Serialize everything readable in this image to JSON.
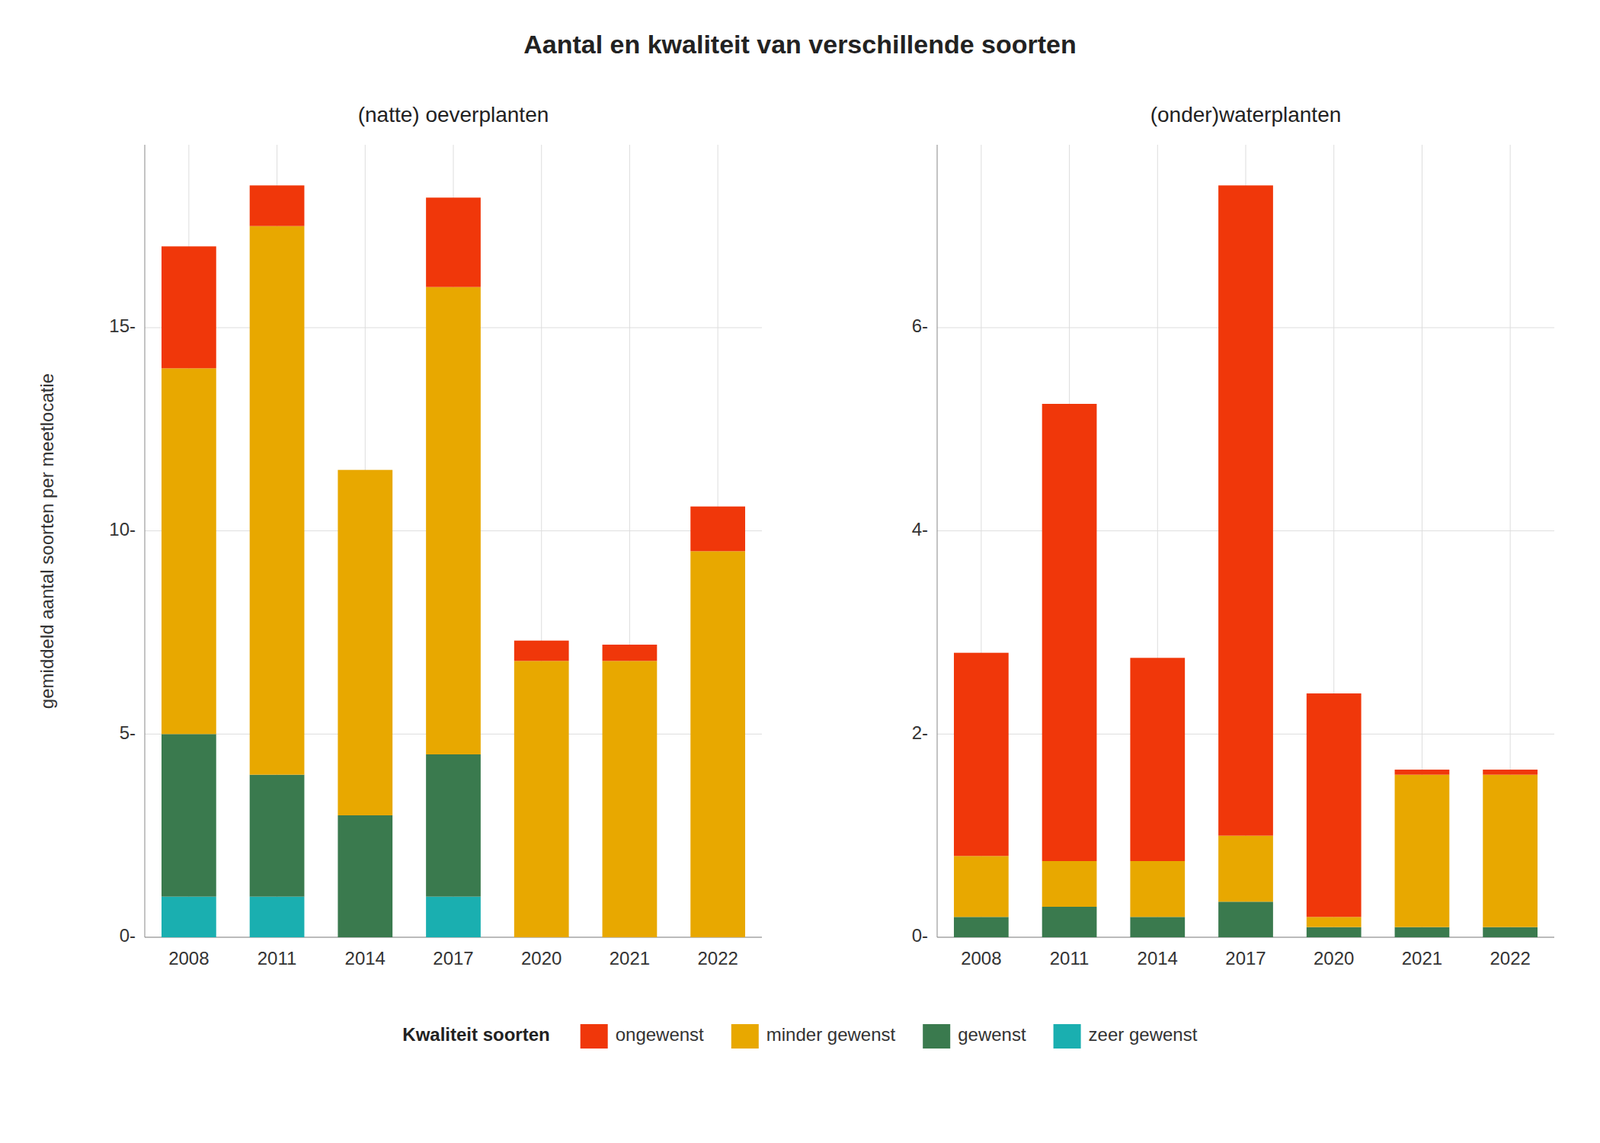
{
  "chart_data": [
    {
      "type": "bar",
      "stacked": true,
      "grid": true,
      "legend": "bottom",
      "title": "Aantal en kwaliteit van verschillende soorten",
      "subtitle": "(natte) oeverplanten",
      "y_label": "gemiddeld aantal soorten per meetlocatie",
      "legend_title": "Kwaliteit soorten",
      "categories": [
        "2008",
        "2011",
        "2014",
        "2017",
        "2020",
        "2021",
        "2022"
      ],
      "series": [
        {
          "name": "zeer gewenst",
          "color": "#1AAFB0",
          "values": [
            1.0,
            1.0,
            0.0,
            1.0,
            0.0,
            0.0,
            0.0
          ]
        },
        {
          "name": "gewenst",
          "color": "#3A7A4E",
          "values": [
            4.0,
            3.0,
            3.0,
            3.5,
            0.0,
            0.0,
            0.0
          ]
        },
        {
          "name": "minder gewenst",
          "color": "#E8A800",
          "values": [
            9.0,
            13.5,
            8.5,
            11.5,
            6.8,
            6.8,
            9.5
          ]
        },
        {
          "name": "ongewenst",
          "color": "#F0370A",
          "values": [
            3.0,
            1.0,
            0.0,
            2.2,
            0.5,
            0.4,
            1.1
          ]
        }
      ],
      "ylim": [
        0,
        19.5
      ],
      "yticks": [
        {
          "value": 0,
          "label": "0-"
        },
        {
          "value": 5,
          "label": "5-"
        },
        {
          "value": 10,
          "label": "10-"
        },
        {
          "value": 15,
          "label": "15-"
        }
      ]
    },
    {
      "type": "bar",
      "stacked": true,
      "grid": true,
      "subtitle": "(onder)waterplanten",
      "categories": [
        "2008",
        "2011",
        "2014",
        "2017",
        "2020",
        "2021",
        "2022"
      ],
      "series": [
        {
          "color": "#1AAFB0",
          "values": [
            0.0,
            0.0,
            0.0,
            0.0,
            0.0,
            0.0,
            0.0
          ]
        },
        {
          "color": "#3A7A4E",
          "values": [
            0.2,
            0.3,
            0.2,
            0.35,
            0.1,
            0.1,
            0.1
          ]
        },
        {
          "color": "#E8A800",
          "values": [
            0.6,
            0.45,
            0.55,
            0.65,
            0.1,
            1.5,
            1.5
          ]
        },
        {
          "color": "#F0370A",
          "values": [
            2.0,
            4.5,
            2.0,
            6.4,
            2.2,
            0.05,
            0.05
          ]
        }
      ],
      "ylim": [
        0,
        7.8
      ],
      "yticks": [
        {
          "value": 0,
          "label": "0-"
        },
        {
          "value": 2,
          "label": "2-"
        },
        {
          "value": 4,
          "label": "4-"
        },
        {
          "value": 6,
          "label": "6-"
        }
      ]
    }
  ]
}
